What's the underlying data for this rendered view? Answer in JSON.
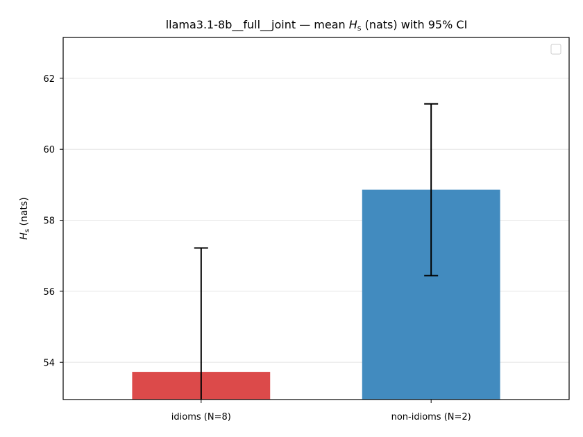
{
  "chart_data": {
    "type": "bar",
    "title_parts": [
      "llama3.1-8b__full__joint — mean ",
      "H",
      "s",
      " (nats) with 95% CI"
    ],
    "xlabel": "",
    "ylabel_parts": [
      "H",
      "s",
      " (nats)"
    ],
    "categories": [
      "idioms (N=8)",
      "non-idioms (N=2)"
    ],
    "values": [
      53.73,
      58.86
    ],
    "ci_low": [
      52.6,
      56.44
    ],
    "ci_high": [
      57.22,
      61.28
    ],
    "colors": [
      "#dc4a4a",
      "#428bbf"
    ],
    "ylim": [
      52.95,
      63.15
    ],
    "yticks": [
      54,
      56,
      58,
      60,
      62
    ],
    "grid": "horizontal",
    "legend": "top-right, empty"
  }
}
